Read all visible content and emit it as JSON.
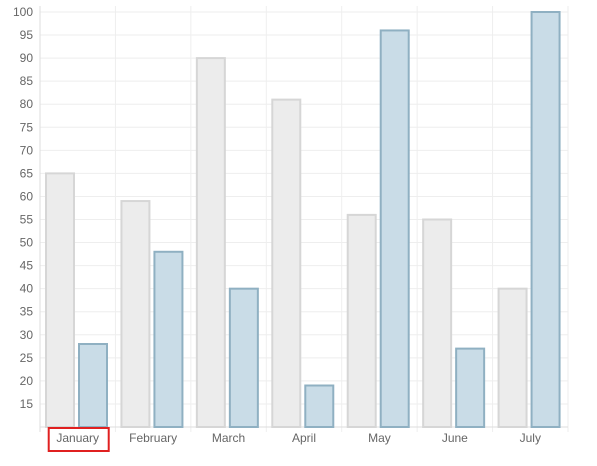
{
  "chart_data": {
    "type": "bar",
    "categories": [
      "January",
      "February",
      "March",
      "April",
      "May",
      "June",
      "July"
    ],
    "series": [
      {
        "values": [
          65,
          59,
          90,
          81,
          56,
          55,
          40
        ],
        "fill": "#ececec",
        "stroke": "#d6d6d6"
      },
      {
        "values": [
          28,
          48,
          40,
          19,
          96,
          27,
          100
        ],
        "fill": "#c9dce7",
        "stroke": "#8fb0c2"
      }
    ],
    "y_ticks": [
      15,
      20,
      25,
      30,
      35,
      40,
      45,
      50,
      55,
      60,
      65,
      70,
      75,
      80,
      85,
      90,
      95,
      100
    ],
    "ylim": [
      10,
      100
    ],
    "grid": true,
    "highlighted_category": "January",
    "highlight_color": "#e02020"
  }
}
